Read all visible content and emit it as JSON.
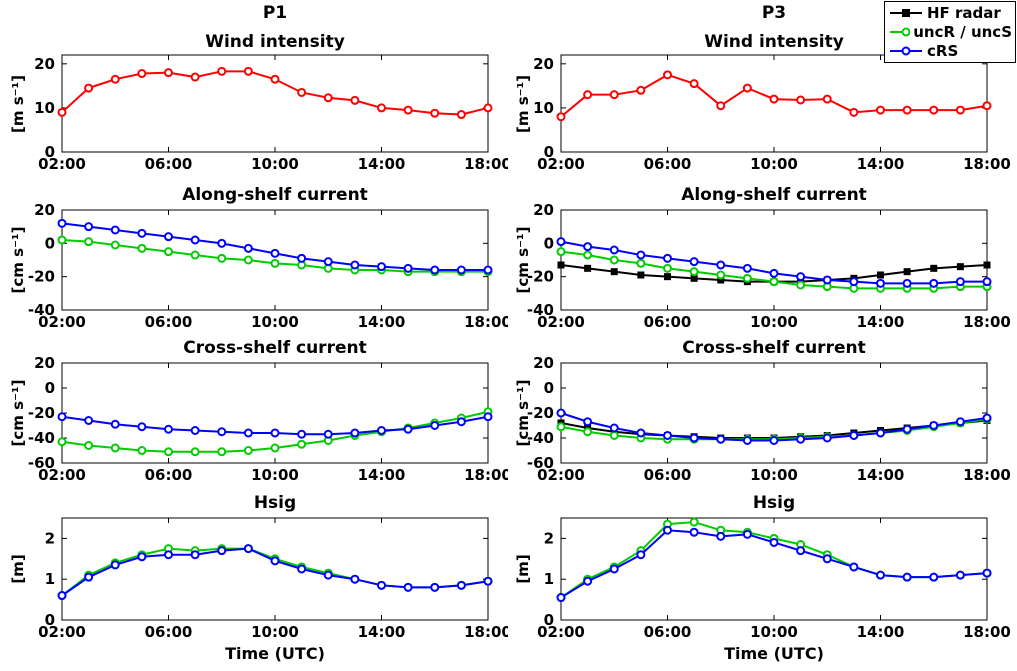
{
  "figure": {
    "columns": [
      "P1",
      "P3"
    ],
    "xlabel": "Time (UTC)",
    "legend": {
      "entries": [
        {
          "label": "HF radar",
          "color": "#000000",
          "marker": "square"
        },
        {
          "label": "uncR / uncS",
          "color": "#00cc00",
          "marker": "circle"
        },
        {
          "label": "cRS",
          "color": "#0000ff",
          "marker": "circle"
        }
      ]
    }
  },
  "chart_data": [
    {
      "type": "line",
      "panel": "P1",
      "title": "Wind intensity",
      "ylabel": "[m s⁻¹]",
      "xlim": [
        2,
        18
      ],
      "ylim": [
        0,
        22
      ],
      "yticks": [
        0,
        10,
        20
      ],
      "x_hours": [
        2,
        3,
        4,
        5,
        6,
        7,
        8,
        9,
        10,
        11,
        12,
        13,
        14,
        15,
        16,
        17,
        18
      ],
      "xticks": {
        "hours": [
          2,
          6,
          10,
          14,
          18
        ],
        "labels": [
          "02:00",
          "06:00",
          "10:00",
          "14:00",
          "18:00"
        ]
      },
      "series": [
        {
          "name": "wind",
          "color": "#ff0000",
          "marker": "circle",
          "values": [
            9,
            14.5,
            16.5,
            17.8,
            18,
            17,
            18.3,
            18.3,
            16.5,
            13.5,
            12.3,
            11.7,
            10,
            9.5,
            8.8,
            8.5,
            10
          ]
        }
      ]
    },
    {
      "type": "line",
      "panel": "P3",
      "title": "Wind intensity",
      "ylabel": "[m s⁻¹]",
      "xlim": [
        2,
        18
      ],
      "ylim": [
        0,
        22
      ],
      "yticks": [
        0,
        10,
        20
      ],
      "x_hours": [
        2,
        3,
        4,
        5,
        6,
        7,
        8,
        9,
        10,
        11,
        12,
        13,
        14,
        15,
        16,
        17,
        18
      ],
      "xticks": {
        "hours": [
          2,
          6,
          10,
          14,
          18
        ],
        "labels": [
          "02:00",
          "06:00",
          "10:00",
          "14:00",
          "18:00"
        ]
      },
      "series": [
        {
          "name": "wind",
          "color": "#ff0000",
          "marker": "circle",
          "values": [
            8,
            13,
            13,
            14,
            17.5,
            15.5,
            10.5,
            14.5,
            12,
            11.8,
            12,
            9,
            9.5,
            9.5,
            9.5,
            9.5,
            10.5
          ]
        }
      ]
    },
    {
      "type": "line",
      "panel": "P1",
      "title": "Along-shelf current",
      "ylabel": "[cm s⁻¹]",
      "xlim": [
        2,
        18
      ],
      "ylim": [
        -40,
        20
      ],
      "yticks": [
        -40,
        -20,
        0,
        20
      ],
      "x_hours": [
        2,
        3,
        4,
        5,
        6,
        7,
        8,
        9,
        10,
        11,
        12,
        13,
        14,
        15,
        16,
        17,
        18
      ],
      "xticks": {
        "hours": [
          2,
          6,
          10,
          14,
          18
        ],
        "labels": [
          "02:00",
          "06:00",
          "10:00",
          "14:00",
          "18:00"
        ]
      },
      "series": [
        {
          "name": "uncR / uncS",
          "color": "#00cc00",
          "marker": "circle",
          "values": [
            2,
            1,
            -1,
            -3,
            -5,
            -7,
            -9,
            -10,
            -12,
            -13,
            -15,
            -16,
            -16,
            -17,
            -17,
            -17,
            -17
          ]
        },
        {
          "name": "cRS",
          "color": "#0000ff",
          "marker": "circle",
          "values": [
            12,
            10,
            8,
            6,
            4,
            2,
            0,
            -3,
            -6,
            -9,
            -11,
            -13,
            -14,
            -15,
            -16,
            -16,
            -16
          ]
        }
      ]
    },
    {
      "type": "line",
      "panel": "P3",
      "title": "Along-shelf current",
      "ylabel": "[cm s⁻¹]",
      "xlim": [
        2,
        18
      ],
      "ylim": [
        -40,
        20
      ],
      "yticks": [
        -40,
        -20,
        0,
        20
      ],
      "x_hours": [
        2,
        3,
        4,
        5,
        6,
        7,
        8,
        9,
        10,
        11,
        12,
        13,
        14,
        15,
        16,
        17,
        18
      ],
      "xticks": {
        "hours": [
          2,
          6,
          10,
          14,
          18
        ],
        "labels": [
          "02:00",
          "06:00",
          "10:00",
          "14:00",
          "18:00"
        ]
      },
      "series": [
        {
          "name": "HF radar",
          "color": "#000000",
          "marker": "square",
          "values": [
            -13,
            -15,
            -17,
            -19,
            -20,
            -21,
            -22,
            -23,
            -23,
            -23,
            -22,
            -21,
            -19,
            -17,
            -15,
            -14,
            -13
          ]
        },
        {
          "name": "uncR / uncS",
          "color": "#00cc00",
          "marker": "circle",
          "values": [
            -5,
            -7,
            -10,
            -12,
            -15,
            -17,
            -19,
            -21,
            -23,
            -25,
            -26,
            -27,
            -27,
            -27,
            -27,
            -26,
            -26
          ]
        },
        {
          "name": "cRS",
          "color": "#0000ff",
          "marker": "circle",
          "values": [
            1,
            -2,
            -4,
            -7,
            -9,
            -11,
            -13,
            -15,
            -18,
            -20,
            -22,
            -23,
            -24,
            -24,
            -24,
            -23,
            -23
          ]
        }
      ]
    },
    {
      "type": "line",
      "panel": "P1",
      "title": "Cross-shelf current",
      "ylabel": "[cm s⁻¹]",
      "xlim": [
        2,
        18
      ],
      "ylim": [
        -60,
        20
      ],
      "yticks": [
        -60,
        -40,
        -20,
        0,
        20
      ],
      "x_hours": [
        2,
        3,
        4,
        5,
        6,
        7,
        8,
        9,
        10,
        11,
        12,
        13,
        14,
        15,
        16,
        17,
        18
      ],
      "xticks": {
        "hours": [
          2,
          6,
          10,
          14,
          18
        ],
        "labels": [
          "02:00",
          "06:00",
          "10:00",
          "14:00",
          "18:00"
        ]
      },
      "series": [
        {
          "name": "uncR / uncS",
          "color": "#00cc00",
          "marker": "circle",
          "values": [
            -43,
            -46,
            -48,
            -50,
            -51,
            -51,
            -51,
            -50,
            -48,
            -45,
            -42,
            -38,
            -35,
            -32,
            -28,
            -24,
            -19
          ]
        },
        {
          "name": "cRS",
          "color": "#0000ff",
          "marker": "circle",
          "values": [
            -23,
            -26,
            -29,
            -31,
            -33,
            -34,
            -35,
            -36,
            -36,
            -37,
            -37,
            -36,
            -34,
            -33,
            -30,
            -27,
            -23
          ]
        }
      ]
    },
    {
      "type": "line",
      "panel": "P3",
      "title": "Cross-shelf current",
      "ylabel": "[cm s⁻¹]",
      "xlim": [
        2,
        18
      ],
      "ylim": [
        -60,
        20
      ],
      "yticks": [
        -60,
        -40,
        -20,
        0,
        20
      ],
      "x_hours": [
        2,
        3,
        4,
        5,
        6,
        7,
        8,
        9,
        10,
        11,
        12,
        13,
        14,
        15,
        16,
        17,
        18
      ],
      "xticks": {
        "hours": [
          2,
          6,
          10,
          14,
          18
        ],
        "labels": [
          "02:00",
          "06:00",
          "10:00",
          "14:00",
          "18:00"
        ]
      },
      "series": [
        {
          "name": "HF radar",
          "color": "#000000",
          "marker": "square",
          "values": [
            -28,
            -32,
            -35,
            -37,
            -38,
            -39,
            -40,
            -40,
            -40,
            -39,
            -38,
            -36,
            -34,
            -32,
            -30,
            -28,
            -26
          ]
        },
        {
          "name": "uncR / uncS",
          "color": "#00cc00",
          "marker": "circle",
          "values": [
            -31,
            -35,
            -38,
            -40,
            -41,
            -41,
            -41,
            -41,
            -41,
            -40,
            -39,
            -38,
            -36,
            -34,
            -31,
            -28,
            -25
          ]
        },
        {
          "name": "cRS",
          "color": "#0000ff",
          "marker": "circle",
          "values": [
            -20,
            -27,
            -32,
            -36,
            -38,
            -40,
            -41,
            -42,
            -42,
            -41,
            -40,
            -38,
            -36,
            -33,
            -30,
            -27,
            -24
          ]
        }
      ]
    },
    {
      "type": "line",
      "panel": "P1",
      "title": "Hsig",
      "ylabel": "[m]",
      "xlim": [
        2,
        18
      ],
      "ylim": [
        0,
        2.5
      ],
      "yticks": [
        0,
        1,
        2
      ],
      "x_hours": [
        2,
        3,
        4,
        5,
        6,
        7,
        8,
        9,
        10,
        11,
        12,
        13,
        14,
        15,
        16,
        17,
        18
      ],
      "xticks": {
        "hours": [
          2,
          6,
          10,
          14,
          18
        ],
        "labels": [
          "02:00",
          "06:00",
          "10:00",
          "14:00",
          "18:00"
        ]
      },
      "series": [
        {
          "name": "uncR / uncS",
          "color": "#00cc00",
          "marker": "circle",
          "values": [
            0.6,
            1.1,
            1.4,
            1.6,
            1.75,
            1.7,
            1.75,
            1.75,
            1.5,
            1.3,
            1.15,
            1.0,
            0.85,
            0.8,
            0.8,
            0.85,
            0.95
          ]
        },
        {
          "name": "cRS",
          "color": "#0000ff",
          "marker": "circle",
          "values": [
            0.6,
            1.05,
            1.35,
            1.55,
            1.6,
            1.6,
            1.7,
            1.75,
            1.45,
            1.25,
            1.1,
            1.0,
            0.85,
            0.8,
            0.8,
            0.85,
            0.95
          ]
        }
      ]
    },
    {
      "type": "line",
      "panel": "P3",
      "title": "Hsig",
      "ylabel": "[m]",
      "xlim": [
        2,
        18
      ],
      "ylim": [
        0,
        2.5
      ],
      "yticks": [
        0,
        1,
        2
      ],
      "x_hours": [
        2,
        3,
        4,
        5,
        6,
        7,
        8,
        9,
        10,
        11,
        12,
        13,
        14,
        15,
        16,
        17,
        18
      ],
      "xticks": {
        "hours": [
          2,
          6,
          10,
          14,
          18
        ],
        "labels": [
          "02:00",
          "06:00",
          "10:00",
          "14:00",
          "18:00"
        ]
      },
      "series": [
        {
          "name": "uncR / uncS",
          "color": "#00cc00",
          "marker": "circle",
          "values": [
            0.55,
            1.0,
            1.3,
            1.7,
            2.35,
            2.4,
            2.2,
            2.15,
            2.0,
            1.85,
            1.6,
            1.3,
            1.1,
            1.05,
            1.05,
            1.1,
            1.15
          ]
        },
        {
          "name": "cRS",
          "color": "#0000ff",
          "marker": "circle",
          "values": [
            0.55,
            0.95,
            1.25,
            1.6,
            2.2,
            2.15,
            2.05,
            2.1,
            1.9,
            1.7,
            1.5,
            1.3,
            1.1,
            1.05,
            1.05,
            1.1,
            1.15
          ]
        }
      ]
    }
  ]
}
